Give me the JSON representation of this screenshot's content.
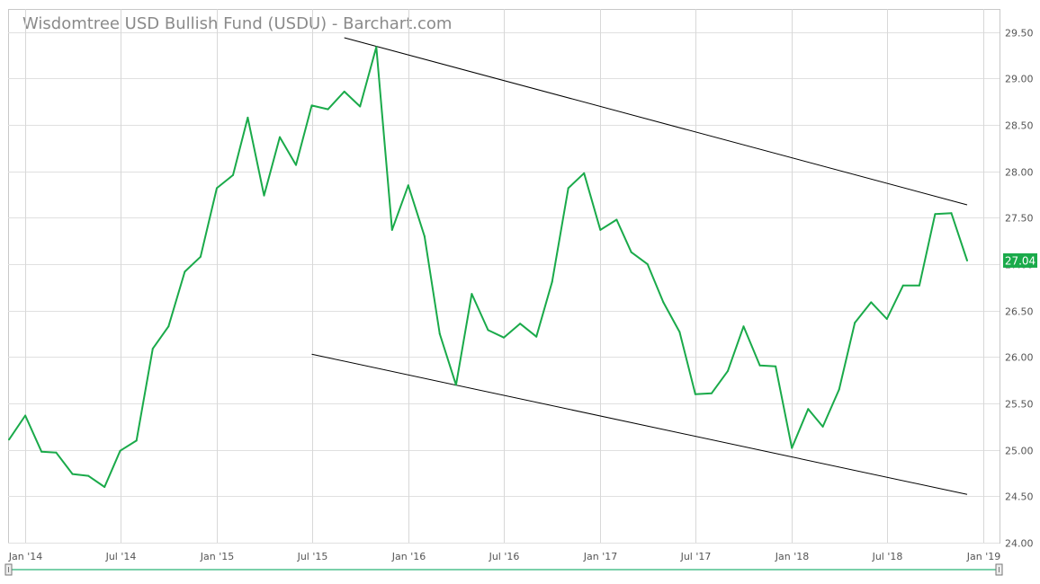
{
  "chart_data": {
    "type": "line",
    "title": "Wisdomtree USD Bullish Fund (USDU) - Barchart.com",
    "ylim": [
      24.0,
      29.75
    ],
    "y_ticks": [
      "24.00",
      "24.50",
      "25.00",
      "25.50",
      "26.00",
      "26.50",
      "27.00",
      "27.50",
      "28.00",
      "28.50",
      "29.00",
      "29.50"
    ],
    "x_ticks": [
      {
        "label": "Jan '14",
        "date": "2014-01-01"
      },
      {
        "label": "Jul '14",
        "date": "2014-07-01"
      },
      {
        "label": "Jan '15",
        "date": "2015-01-01"
      },
      {
        "label": "Jul '15",
        "date": "2015-07-01"
      },
      {
        "label": "Jan '16",
        "date": "2016-01-01"
      },
      {
        "label": "Jul '16",
        "date": "2016-07-01"
      },
      {
        "label": "Jan '17",
        "date": "2017-01-01"
      },
      {
        "label": "Jul '17",
        "date": "2017-07-01"
      },
      {
        "label": "Jan '18",
        "date": "2018-01-01"
      },
      {
        "label": "Jul '18",
        "date": "2018-07-01"
      },
      {
        "label": "Jan '19",
        "date": "2019-01-01"
      }
    ],
    "series": [
      {
        "color": "#1aaa4a",
        "points": [
          [
            "2013-12-01",
            25.11
          ],
          [
            "2014-01-01",
            25.37
          ],
          [
            "2014-02-01",
            24.98
          ],
          [
            "2014-03-01",
            24.97
          ],
          [
            "2014-04-01",
            24.74
          ],
          [
            "2014-05-01",
            24.72
          ],
          [
            "2014-06-01",
            24.6
          ],
          [
            "2014-07-01",
            24.99
          ],
          [
            "2014-08-01",
            25.1
          ],
          [
            "2014-09-01",
            26.09
          ],
          [
            "2014-10-01",
            26.33
          ],
          [
            "2014-11-01",
            26.92
          ],
          [
            "2014-12-01",
            27.08
          ],
          [
            "2015-01-01",
            27.82
          ],
          [
            "2015-02-01",
            27.96
          ],
          [
            "2015-03-01",
            28.58
          ],
          [
            "2015-04-01",
            27.74
          ],
          [
            "2015-05-01",
            28.37
          ],
          [
            "2015-06-01",
            28.07
          ],
          [
            "2015-07-01",
            28.71
          ],
          [
            "2015-08-01",
            28.67
          ],
          [
            "2015-09-01",
            28.86
          ],
          [
            "2015-10-01",
            28.7
          ],
          [
            "2015-11-01",
            29.34
          ],
          [
            "2015-12-01",
            27.37
          ],
          [
            "2016-01-01",
            27.85
          ],
          [
            "2016-02-01",
            27.3
          ],
          [
            "2016-03-01",
            26.25
          ],
          [
            "2016-04-01",
            25.7
          ],
          [
            "2016-05-01",
            26.68
          ],
          [
            "2016-06-01",
            26.29
          ],
          [
            "2016-07-01",
            26.21
          ],
          [
            "2016-08-01",
            26.36
          ],
          [
            "2016-09-01",
            26.22
          ],
          [
            "2016-10-01",
            26.81
          ],
          [
            "2016-11-01",
            27.82
          ],
          [
            "2016-12-01",
            27.98
          ],
          [
            "2017-01-01",
            27.37
          ],
          [
            "2017-02-01",
            27.48
          ],
          [
            "2017-03-01",
            27.13
          ],
          [
            "2017-04-01",
            27.0
          ],
          [
            "2017-05-01",
            26.59
          ],
          [
            "2017-06-01",
            26.27
          ],
          [
            "2017-07-01",
            25.6
          ],
          [
            "2017-08-01",
            25.61
          ],
          [
            "2017-09-01",
            25.85
          ],
          [
            "2017-10-01",
            26.33
          ],
          [
            "2017-11-01",
            25.91
          ],
          [
            "2017-12-01",
            25.9
          ],
          [
            "2018-01-01",
            25.02
          ],
          [
            "2018-02-01",
            25.44
          ],
          [
            "2018-03-01",
            25.25
          ],
          [
            "2018-04-01",
            25.65
          ],
          [
            "2018-05-01",
            26.37
          ],
          [
            "2018-06-01",
            26.59
          ],
          [
            "2018-07-01",
            26.41
          ],
          [
            "2018-08-01",
            26.77
          ],
          [
            "2018-09-01",
            26.77
          ],
          [
            "2018-10-01",
            27.54
          ],
          [
            "2018-11-01",
            27.55
          ],
          [
            "2018-12-01",
            27.04
          ]
        ]
      }
    ],
    "trendlines": [
      {
        "start": [
          "2015-09-01",
          29.44
        ],
        "end": [
          "2018-12-01",
          27.64
        ]
      },
      {
        "start": [
          "2015-07-01",
          26.03
        ],
        "end": [
          "2018-12-01",
          24.52
        ]
      }
    ],
    "last_value_label": "27.04",
    "grid": true,
    "legend": "none"
  }
}
